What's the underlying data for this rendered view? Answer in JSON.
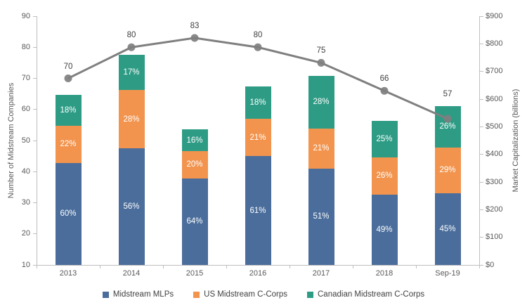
{
  "chart_data": {
    "type": "combo",
    "subtype": {
      "bars": "stacked-column",
      "line": "line-with-markers"
    },
    "categories": [
      "2013",
      "2014",
      "2015",
      "2016",
      "2017",
      "2018",
      "Sep-19"
    ],
    "bar_series": [
      {
        "name": "Midstream MLPs",
        "color": "#4A6D9B",
        "percents": [
          60,
          56,
          64,
          61,
          51,
          49,
          45
        ],
        "percent_labels": [
          "60%",
          "56%",
          "64%",
          "61%",
          "51%",
          "49%",
          "45%"
        ]
      },
      {
        "name": "US Midstream C-Corps",
        "color": "#F2944E",
        "percents": [
          22,
          28,
          20,
          21,
          21,
          26,
          29
        ],
        "percent_labels": [
          "22%",
          "28%",
          "20%",
          "21%",
          "21%",
          "26%",
          "29%"
        ]
      },
      {
        "name": "Canadian Midstream C-Corps",
        "color": "#2E9C85",
        "percents": [
          18,
          17,
          16,
          18,
          28,
          25,
          26
        ],
        "percent_labels": [
          "18%",
          "17%",
          "16%",
          "18%",
          "28%",
          "25%",
          "26%"
        ]
      }
    ],
    "bar_totals_market_cap_billions": [
      615,
      760,
      490,
      645,
      685,
      520,
      575
    ],
    "line_series": {
      "name": "Number of Midstream Companies",
      "color": "#7F7F7F",
      "values": [
        70,
        80,
        83,
        80,
        75,
        66,
        57
      ],
      "value_labels": [
        "70",
        "80",
        "83",
        "80",
        "75",
        "66",
        "57"
      ]
    },
    "left_axis": {
      "label": "Number of Midstream Companies",
      "min": 10,
      "max": 90,
      "step": 10,
      "tick_labels": [
        "10",
        "20",
        "30",
        "40",
        "50",
        "60",
        "70",
        "80",
        "90"
      ]
    },
    "right_axis": {
      "label": "Market Capitalization (billions)",
      "min": 0,
      "max": 900,
      "step": 100,
      "tick_labels": [
        "$0",
        "$100",
        "$200",
        "$300",
        "$400",
        "$500",
        "$600",
        "$700",
        "$800",
        "$900"
      ]
    },
    "legend": [
      "Midstream MLPs",
      "US Midstream C-Corps",
      "Canadian Midstream C-Corps"
    ]
  }
}
